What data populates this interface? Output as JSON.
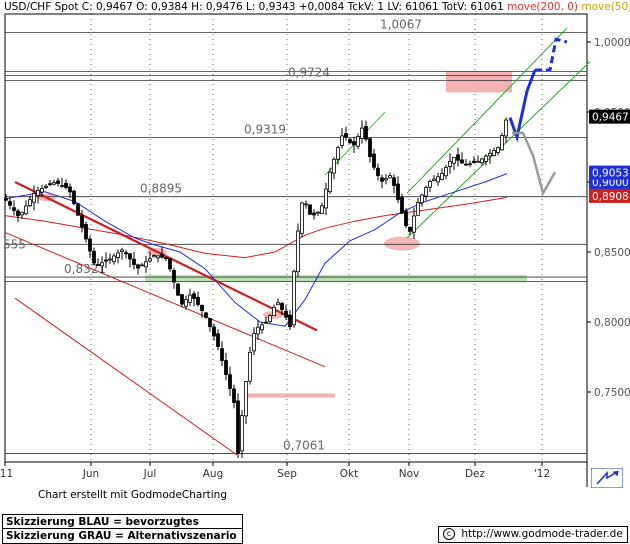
{
  "header": {
    "symbol": "USD/CHF Spot",
    "quote": "C: 0,9467 O: 0,9384 H: 0,9476 L: 0,9343 +0,0084 TckV: 1 LV: 61061 TotV: 61061",
    "ma200_label": "move(200, 0)",
    "ma50_label": "move(50, 0)"
  },
  "footer": {
    "credit": "Chart erstellt mit GodmodeCharting",
    "legend_blue": "Skizzierung BLAU = bevorzugtes Szenario",
    "legend_gray": "Skizzierung GRAU = Alternativszenario",
    "copyright": "http://www.godmode-trader.de"
  },
  "colors": {
    "candles": "#000000",
    "ma200": "#cc1f1f",
    "ma50": "#1f2fd6",
    "channel_down": "#cc1f1f",
    "channel_up": "#22aa22",
    "scenario_blue": "#1f2fd6",
    "scenario_gray": "#999999",
    "highlight_red": "#f4aaaa",
    "highlight_green": "#aee0a8",
    "last_price_bg": "#000000",
    "ma50_tag_bg": "#1f2fd6",
    "ma200_tag_bg": "#cc1f1f"
  },
  "chart_data": {
    "type": "candlestick",
    "instrument": "USD/CHF Spot",
    "x_ticks": [
      "'11",
      "Jun",
      "Jul",
      "Aug",
      "Sep",
      "Okt",
      "Nov",
      "Dez",
      "'12"
    ],
    "y_ticks": [
      "1,0000",
      "0,9500",
      "0,9000",
      "0,8500",
      "0,8000",
      "0,7500"
    ],
    "ylim": [
      0.7,
      1.02
    ],
    "last_price_tag": "0,9467",
    "ma50_tag": "0,9053",
    "ma200_tag": "0,8908",
    "ma50_tag_hidden": "0,9000",
    "horizontal_levels": [
      {
        "value": 1.0067,
        "label": "1,0067"
      },
      {
        "value": 0.9724,
        "label": "0,9724"
      },
      {
        "value": 0.9319,
        "label": "0,9319"
      },
      {
        "value": 0.8895,
        "label": "0,8895"
      },
      {
        "value": 0.8321,
        "label": "0,8321"
      },
      {
        "value": 0.7061,
        "label": "0,7061"
      }
    ],
    "edge_label": {
      "value": 0.8555,
      "label": "555"
    },
    "extra_levels": [
      0.979,
      0.976,
      0.8555,
      0.829
    ],
    "series": [
      {
        "name": "move(200, 0)",
        "kind": "ma200",
        "points": [
          [
            0,
            0.876
          ],
          [
            40,
            0.872
          ],
          [
            80,
            0.867
          ],
          [
            120,
            0.862
          ],
          [
            160,
            0.856
          ],
          [
            200,
            0.849
          ],
          [
            240,
            0.846
          ],
          [
            270,
            0.85
          ],
          [
            285,
            0.856
          ],
          [
            300,
            0.862
          ],
          [
            320,
            0.867
          ],
          [
            350,
            0.872
          ],
          [
            380,
            0.876
          ],
          [
            420,
            0.88
          ],
          [
            460,
            0.884
          ],
          [
            502,
            0.889
          ]
        ]
      },
      {
        "name": "move(50, 0)",
        "kind": "ma50",
        "points": [
          [
            0,
            0.888
          ],
          [
            40,
            0.893
          ],
          [
            70,
            0.886
          ],
          [
            100,
            0.872
          ],
          [
            130,
            0.86
          ],
          [
            150,
            0.855
          ],
          [
            175,
            0.85
          ],
          [
            200,
            0.838
          ],
          [
            230,
            0.814
          ],
          [
            255,
            0.8
          ],
          [
            280,
            0.797
          ],
          [
            300,
            0.816
          ],
          [
            320,
            0.842
          ],
          [
            345,
            0.858
          ],
          [
            370,
            0.866
          ],
          [
            395,
            0.878
          ],
          [
            420,
            0.886
          ],
          [
            450,
            0.893
          ],
          [
            480,
            0.9
          ],
          [
            502,
            0.906
          ]
        ]
      }
    ],
    "price_path": [
      [
        0,
        0.888
      ],
      [
        14,
        0.875
      ],
      [
        30,
        0.893
      ],
      [
        50,
        0.9
      ],
      [
        64,
        0.895
      ],
      [
        76,
        0.87
      ],
      [
        90,
        0.84
      ],
      [
        105,
        0.845
      ],
      [
        118,
        0.852
      ],
      [
        132,
        0.838
      ],
      [
        150,
        0.848
      ],
      [
        162,
        0.845
      ],
      [
        176,
        0.812
      ],
      [
        186,
        0.82
      ],
      [
        200,
        0.805
      ],
      [
        212,
        0.785
      ],
      [
        222,
        0.76
      ],
      [
        230,
        0.74
      ],
      [
        233,
        0.706
      ],
      [
        238,
        0.74
      ],
      [
        244,
        0.775
      ],
      [
        250,
        0.795
      ],
      [
        262,
        0.8
      ],
      [
        272,
        0.815
      ],
      [
        280,
        0.805
      ],
      [
        286,
        0.795
      ],
      [
        290,
        0.85
      ],
      [
        298,
        0.89
      ],
      [
        306,
        0.875
      ],
      [
        316,
        0.88
      ],
      [
        326,
        0.91
      ],
      [
        338,
        0.935
      ],
      [
        348,
        0.925
      ],
      [
        358,
        0.94
      ],
      [
        366,
        0.915
      ],
      [
        376,
        0.9
      ],
      [
        386,
        0.905
      ],
      [
        396,
        0.88
      ],
      [
        404,
        0.862
      ],
      [
        412,
        0.884
      ],
      [
        424,
        0.9
      ],
      [
        436,
        0.905
      ],
      [
        448,
        0.918
      ],
      [
        460,
        0.912
      ],
      [
        474,
        0.915
      ],
      [
        484,
        0.92
      ],
      [
        494,
        0.925
      ],
      [
        502,
        0.947
      ]
    ],
    "trend_lines": [
      {
        "name": "downtrend-thick",
        "color": "channel_down",
        "width": 2.2,
        "points": [
          [
            10,
            0.9
          ],
          [
            312,
            0.794
          ]
        ]
      },
      {
        "name": "downtrend-upper",
        "color": "channel_down",
        "width": 1,
        "points": [
          [
            0,
            0.864
          ],
          [
            320,
            0.768
          ]
        ]
      },
      {
        "name": "downtrend-lower",
        "color": "channel_down",
        "width": 1,
        "points": [
          [
            10,
            0.817
          ],
          [
            232,
            0.705
          ]
        ]
      },
      {
        "name": "uptrend-lower",
        "color": "channel_up",
        "width": 1,
        "points": [
          [
            402,
            0.86
          ],
          [
            585,
            0.986
          ]
        ]
      },
      {
        "name": "uptrend-upper",
        "color": "channel_up",
        "width": 1,
        "points": [
          [
            402,
            0.892
          ],
          [
            562,
            1.01
          ]
        ]
      },
      {
        "name": "uptrend-mid",
        "color": "channel_up",
        "width": 0.8,
        "points": [
          [
            320,
            0.905
          ],
          [
            380,
            0.95
          ]
        ]
      }
    ],
    "scenario_blue": [
      [
        505,
        0.946
      ],
      [
        512,
        0.932
      ],
      [
        522,
        0.965
      ],
      [
        530,
        0.98
      ],
      [
        545,
        0.98
      ],
      [
        551,
        1.002
      ],
      [
        562,
        1.0
      ]
    ],
    "scenario_gray": [
      [
        507,
        0.935
      ],
      [
        518,
        0.935
      ],
      [
        528,
        0.919
      ],
      [
        538,
        0.892
      ],
      [
        550,
        0.907
      ]
    ],
    "highlight_zones": [
      {
        "name": "red-box-top",
        "color": "highlight_red",
        "x": [
          441,
          507
        ],
        "y": [
          0.964,
          0.979
        ]
      },
      {
        "name": "red-bar-bottom",
        "color": "highlight_red",
        "x": [
          239,
          330
        ],
        "y": [
          0.746,
          0.749
        ]
      },
      {
        "name": "green-band",
        "color": "highlight_green",
        "x": [
          140,
          522
        ],
        "y": [
          0.8285,
          0.8335
        ]
      }
    ],
    "highlight_ellipses": [
      {
        "name": "ellipse-nov-low",
        "color": "highlight_red",
        "cx": 397,
        "cy": 0.856,
        "rx": 18,
        "ry": 7
      },
      {
        "name": "ellipse-may",
        "color": "highlight_red",
        "cx": 42,
        "cy": 0.889,
        "rx": 9,
        "ry": 4
      },
      {
        "name": "ellipse-jul",
        "color": "highlight_red",
        "cx": 152,
        "cy": 0.85,
        "rx": 10,
        "ry": 4
      },
      {
        "name": "ellipse-aug",
        "color": "highlight_red",
        "cx": 268,
        "cy": 0.805,
        "rx": 10,
        "ry": 4
      }
    ]
  }
}
